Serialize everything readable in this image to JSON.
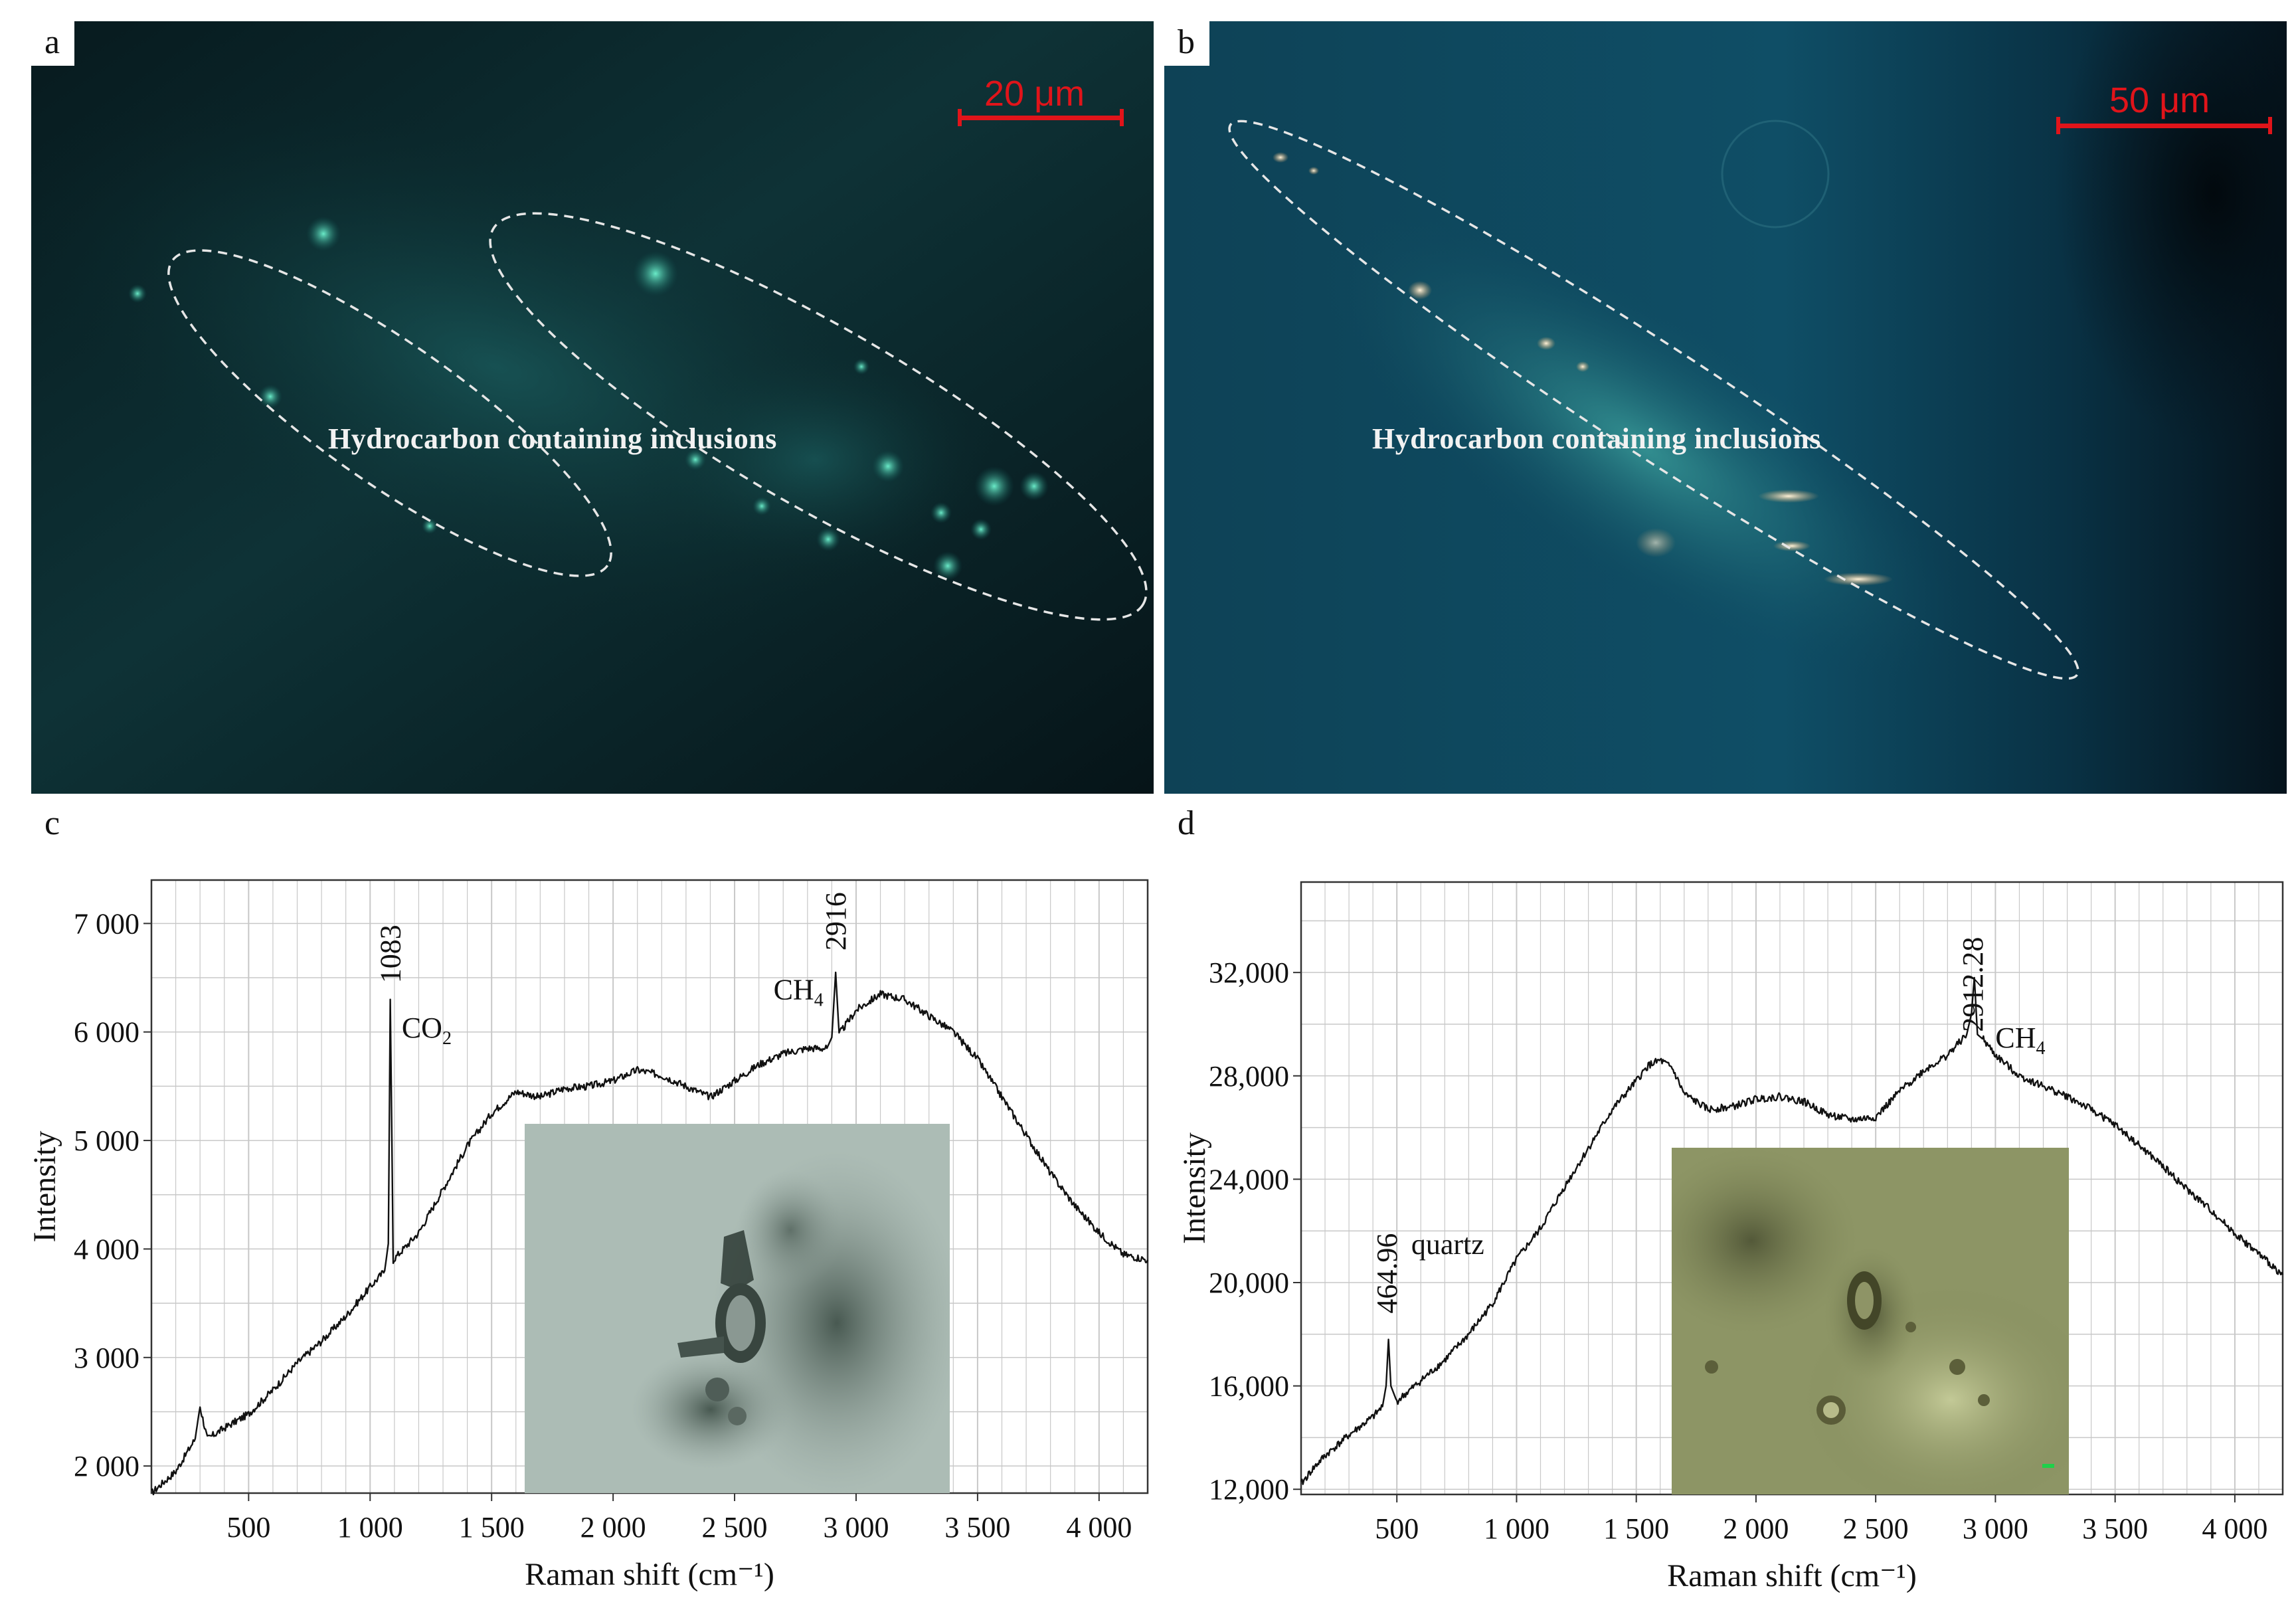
{
  "panels": {
    "a": {
      "label": "a",
      "scale_text": "20 μm",
      "caption": "Hydrocarbon containing inclusions"
    },
    "b": {
      "label": "b",
      "scale_text": "50 μm",
      "caption": "Hydrocarbon containing inclusions"
    },
    "c": {
      "label": "c"
    },
    "d": {
      "label": "d"
    }
  },
  "colors": {
    "scale_bar": "#e0141a",
    "spectrum_line": "#111111",
    "grid": "#c8c8c8",
    "photo_a_bg": "#0b2a2c",
    "photo_b_bg": "#0e4a5e"
  },
  "chart_data": [
    {
      "id": "c",
      "type": "line",
      "title": "",
      "xlabel": "Raman shift (cm⁻¹)",
      "ylabel": "Intensity",
      "xlim": [
        100,
        4200
      ],
      "ylim": [
        1750,
        7400
      ],
      "xticks": [
        500,
        1000,
        1500,
        2000,
        2500,
        3000,
        3500,
        4000
      ],
      "xtick_labels": [
        "500",
        "1 000",
        "1 500",
        "2 000",
        "2 500",
        "3 000",
        "3 500",
        "4 000"
      ],
      "yticks": [
        2000,
        3000,
        4000,
        5000,
        6000,
        7000
      ],
      "ytick_labels": [
        "2 000",
        "3 000",
        "4 000",
        "5 000",
        "6 000",
        "7 000"
      ],
      "grid": true,
      "series": [
        {
          "points": [
            [
              100,
              1750
            ],
            [
              200,
              1950
            ],
            [
              280,
              2250
            ],
            [
              300,
              2550
            ],
            [
              330,
              2250
            ],
            [
              400,
              2350
            ],
            [
              500,
              2480
            ],
            [
              600,
              2700
            ],
            [
              700,
              2950
            ],
            [
              800,
              3150
            ],
            [
              900,
              3380
            ],
            [
              1000,
              3650
            ],
            [
              1060,
              3800
            ],
            [
              1075,
              4050
            ],
            [
              1083,
              6300
            ],
            [
              1095,
              3900
            ],
            [
              1200,
              4150
            ],
            [
              1300,
              4550
            ],
            [
              1400,
              4950
            ],
            [
              1500,
              5250
            ],
            [
              1600,
              5450
            ],
            [
              1700,
              5400
            ],
            [
              1800,
              5480
            ],
            [
              1900,
              5500
            ],
            [
              2000,
              5550
            ],
            [
              2100,
              5650
            ],
            [
              2200,
              5600
            ],
            [
              2300,
              5500
            ],
            [
              2400,
              5400
            ],
            [
              2500,
              5550
            ],
            [
              2600,
              5700
            ],
            [
              2700,
              5800
            ],
            [
              2800,
              5850
            ],
            [
              2880,
              5850
            ],
            [
              2900,
              5950
            ],
            [
              2916,
              6550
            ],
            [
              2930,
              5980
            ],
            [
              3000,
              6200
            ],
            [
              3100,
              6350
            ],
            [
              3200,
              6300
            ],
            [
              3300,
              6150
            ],
            [
              3400,
              6000
            ],
            [
              3500,
              5750
            ],
            [
              3600,
              5400
            ],
            [
              3700,
              5050
            ],
            [
              3800,
              4700
            ],
            [
              3900,
              4400
            ],
            [
              4000,
              4150
            ],
            [
              4100,
              3950
            ],
            [
              4200,
              3900
            ]
          ]
        }
      ],
      "annotations": [
        {
          "text": "1083",
          "x": 1083,
          "y": 6450,
          "rotate": true
        },
        {
          "text": "CO",
          "sub": "2",
          "x": 1130,
          "y": 5950
        },
        {
          "text": "2916",
          "x": 2916,
          "y": 6750,
          "rotate": true
        },
        {
          "text": "CH",
          "sub": "4",
          "x": 2660,
          "y": 6300
        }
      ]
    },
    {
      "id": "d",
      "type": "line",
      "title": "",
      "xlabel": "Raman shift (cm⁻¹)",
      "ylabel": "Intensity",
      "xlim": [
        100,
        4200
      ],
      "ylim": [
        11800,
        35500
      ],
      "xticks": [
        500,
        1000,
        1500,
        2000,
        2500,
        3000,
        3500,
        4000
      ],
      "xtick_labels": [
        "500",
        "1 000",
        "1 500",
        "2 000",
        "2 500",
        "3 000",
        "3 500",
        "4 000"
      ],
      "yticks": [
        12000,
        16000,
        20000,
        24000,
        28000,
        32000
      ],
      "ytick_labels": [
        "12,000",
        "16,000",
        "20,000",
        "24,000",
        "28,000",
        "32,000"
      ],
      "grid": true,
      "series": [
        {
          "points": [
            [
              100,
              12200
            ],
            [
              150,
              12800
            ],
            [
              200,
              13300
            ],
            [
              300,
              14100
            ],
            [
              400,
              14800
            ],
            [
              440,
              15200
            ],
            [
              455,
              16000
            ],
            [
              465,
              17800
            ],
            [
              475,
              16000
            ],
            [
              500,
              15400
            ],
            [
              600,
              16200
            ],
            [
              700,
              17000
            ],
            [
              800,
              18000
            ],
            [
              900,
              19200
            ],
            [
              1000,
              20900
            ],
            [
              1100,
              22100
            ],
            [
              1200,
              23700
            ],
            [
              1300,
              25200
            ],
            [
              1400,
              26700
            ],
            [
              1500,
              27800
            ],
            [
              1550,
              28400
            ],
            [
              1600,
              28600
            ],
            [
              1650,
              28300
            ],
            [
              1700,
              27300
            ],
            [
              1800,
              26700
            ],
            [
              1900,
              26800
            ],
            [
              2000,
              27100
            ],
            [
              2100,
              27200
            ],
            [
              2200,
              27000
            ],
            [
              2300,
              26500
            ],
            [
              2400,
              26300
            ],
            [
              2500,
              26400
            ],
            [
              2600,
              27400
            ],
            [
              2700,
              28200
            ],
            [
              2800,
              28800
            ],
            [
              2880,
              29600
            ],
            [
              2900,
              30400
            ],
            [
              2912,
              31800
            ],
            [
              2925,
              29600
            ],
            [
              2950,
              29400
            ],
            [
              3000,
              28800
            ],
            [
              3100,
              28000
            ],
            [
              3200,
              27600
            ],
            [
              3300,
              27200
            ],
            [
              3400,
              26700
            ],
            [
              3500,
              26100
            ],
            [
              3600,
              25300
            ],
            [
              3700,
              24500
            ],
            [
              3800,
              23600
            ],
            [
              3900,
              22800
            ],
            [
              4000,
              21900
            ],
            [
              4100,
              21100
            ],
            [
              4200,
              20300
            ]
          ]
        }
      ],
      "annotations": [
        {
          "text": "2912.28",
          "x": 2905,
          "y": 29700,
          "rotate": true
        },
        {
          "text": "CH",
          "sub": "4",
          "x": 3000,
          "y": 29100
        },
        {
          "text": "464.96",
          "x": 458,
          "y": 18800,
          "rotate": true
        },
        {
          "text": "quartz",
          "x": 560,
          "y": 21100
        }
      ]
    }
  ]
}
